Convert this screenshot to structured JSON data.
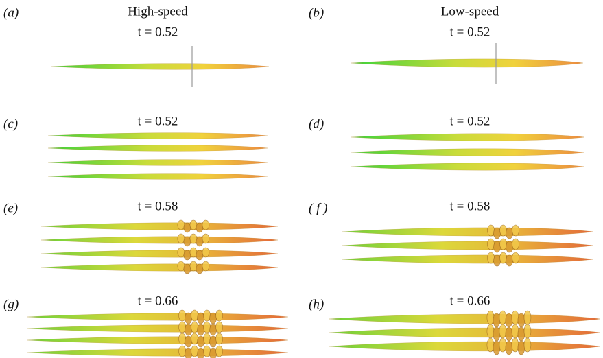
{
  "columns": [
    {
      "title": "High-speed"
    },
    {
      "title": "Low-speed"
    }
  ],
  "panels": [
    {
      "label": "(a)",
      "time": "t = 0.52"
    },
    {
      "label": "(b)",
      "time": "t = 0.52"
    },
    {
      "label": "(c)",
      "time": "t = 0.52"
    },
    {
      "label": "(d)",
      "time": "t = 0.52"
    },
    {
      "label": "(e)",
      "time": "t = 0.58"
    },
    {
      "label": "( f )",
      "time": "t = 0.58"
    },
    {
      "label": "(g)",
      "time": "t = 0.66"
    },
    {
      "label": "(h)",
      "time": "t = 0.66"
    }
  ]
}
